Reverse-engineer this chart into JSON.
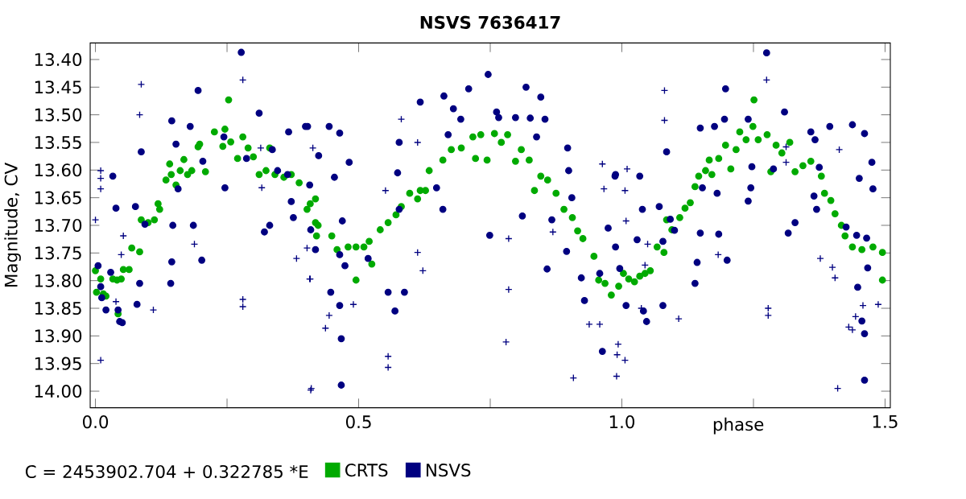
{
  "chart_data": {
    "type": "scatter",
    "title": "NSVS 7636417",
    "xlabel": "phase",
    "ylabel": "Magnitude, CV",
    "annotations": [
      "C = 2453902.704 + 0.322785 *E"
    ],
    "xlim": [
      -0.01,
      1.51
    ],
    "ylim": [
      14.03,
      13.37
    ],
    "xticks": [
      {
        "value": 0,
        "label": "0.0"
      },
      {
        "value": 0.25,
        "label": null
      },
      {
        "value": 0.5,
        "label": "0.5"
      },
      {
        "value": 0.75,
        "label": null
      },
      {
        "value": 1,
        "label": "1.0"
      },
      {
        "value": 1.25,
        "label": null
      },
      {
        "value": 1.5,
        "label": "1.5"
      }
    ],
    "yticks": [
      {
        "value": 13.4,
        "label": "13.40"
      },
      {
        "value": 13.45,
        "label": "13.45"
      },
      {
        "value": 13.5,
        "label": "13.50"
      },
      {
        "value": 13.55,
        "label": "13.55"
      },
      {
        "value": 13.6,
        "label": "13.60"
      },
      {
        "value": 13.65,
        "label": "13.65"
      },
      {
        "value": 13.7,
        "label": "13.70"
      },
      {
        "value": 13.75,
        "label": "13.75"
      },
      {
        "value": 13.8,
        "label": "13.80"
      },
      {
        "value": 13.85,
        "label": "13.85"
      },
      {
        "value": 13.9,
        "label": "13.90"
      },
      {
        "value": 13.95,
        "label": "13.95"
      },
      {
        "value": 14,
        "label": "14.00"
      }
    ],
    "legend": "bottom",
    "marker": "circle",
    "series": [
      {
        "name": "CRTS",
        "color": "#00aa00",
        "x": [
          0.0,
          0.002,
          0.01,
          0.015,
          0.02,
          0.033,
          0.041,
          0.043,
          0.049,
          0.053,
          0.064,
          0.069,
          0.084,
          0.087,
          0.1,
          0.112,
          0.119,
          0.122,
          0.134,
          0.141,
          0.144,
          0.153,
          0.161,
          0.168,
          0.175,
          0.183,
          0.195,
          0.198,
          0.209,
          0.226,
          0.242,
          0.246,
          0.253,
          0.257,
          0.27,
          0.28,
          0.29,
          0.3,
          0.311,
          0.324,
          0.331,
          0.341,
          0.358,
          0.372,
          0.387,
          0.402,
          0.418,
          0.423,
          0.408,
          0.418,
          0.42,
          0.449,
          0.459,
          0.48,
          0.495,
          0.51,
          0.525,
          0.52,
          0.495,
          0.541,
          0.556,
          0.571,
          0.581,
          0.597,
          0.612,
          0.617,
          0.627,
          0.634,
          0.66,
          0.676,
          0.695,
          0.717,
          0.722,
          0.732,
          0.744,
          0.758,
          0.771,
          0.783,
          0.798,
          0.809,
          0.824,
          0.834,
          0.846,
          0.859,
          0.875,
          0.89,
          0.906,
          0.916,
          0.926,
          0.947,
          0.956,
          0.968,
          0.98,
          0.994,
          1.003,
          1.013,
          1.024,
          1.034,
          1.044,
          1.054,
          1.067,
          1.08,
          1.085,
          1.095,
          1.11,
          1.12,
          1.13,
          1.139,
          1.146,
          1.159,
          1.171,
          1.166,
          1.184,
          1.197,
          1.207,
          1.217,
          1.224,
          1.236,
          1.249,
          1.251,
          1.259,
          1.276,
          1.283,
          1.293,
          1.304,
          1.319,
          1.329,
          1.344,
          1.359,
          1.379,
          1.385,
          1.397,
          1.405,
          1.417,
          1.424,
          1.438,
          1.456,
          1.477,
          1.495,
          1.495
        ],
        "values": [
          13.782,
          13.821,
          13.797,
          13.824,
          13.828,
          13.797,
          13.799,
          13.86,
          13.797,
          13.78,
          13.78,
          13.741,
          13.748,
          13.69,
          13.695,
          13.69,
          13.661,
          13.671,
          13.618,
          13.589,
          13.608,
          13.627,
          13.601,
          13.581,
          13.608,
          13.601,
          13.558,
          13.553,
          13.603,
          13.531,
          13.557,
          13.526,
          13.473,
          13.549,
          13.579,
          13.54,
          13.56,
          13.576,
          13.608,
          13.601,
          13.56,
          13.608,
          13.613,
          13.608,
          13.623,
          13.671,
          13.652,
          13.7,
          13.661,
          13.695,
          13.719,
          13.719,
          13.744,
          13.739,
          13.739,
          13.739,
          13.77,
          13.729,
          13.799,
          13.708,
          13.695,
          13.681,
          13.666,
          13.642,
          13.652,
          13.637,
          13.637,
          13.601,
          13.582,
          13.563,
          13.56,
          13.54,
          13.579,
          13.536,
          13.582,
          13.534,
          13.55,
          13.536,
          13.584,
          13.563,
          13.582,
          13.637,
          13.611,
          13.618,
          13.642,
          13.671,
          13.686,
          13.71,
          13.724,
          13.756,
          13.799,
          13.805,
          13.826,
          13.81,
          13.787,
          13.797,
          13.802,
          13.792,
          13.787,
          13.782,
          13.739,
          13.749,
          13.69,
          13.708,
          13.686,
          13.669,
          13.659,
          13.63,
          13.611,
          13.601,
          13.608,
          13.582,
          13.579,
          13.555,
          13.598,
          13.563,
          13.531,
          13.545,
          13.521,
          13.473,
          13.545,
          13.536,
          13.603,
          13.555,
          13.569,
          13.55,
          13.603,
          13.592,
          13.584,
          13.611,
          13.642,
          13.655,
          13.679,
          13.7,
          13.719,
          13.739,
          13.744,
          13.739,
          13.749,
          13.799
        ]
      },
      {
        "name": "NSVS",
        "color": "#000080",
        "x": [
          0.005,
          0.01,
          0.012,
          0.02,
          0.033,
          0.029,
          0.039,
          0.043,
          0.046,
          0.051,
          0.076,
          0.079,
          0.084,
          0.087,
          0.094,
          0.145,
          0.143,
          0.145,
          0.147,
          0.153,
          0.157,
          0.18,
          0.186,
          0.195,
          0.202,
          0.204,
          0.244,
          0.246,
          0.277,
          0.287,
          0.311,
          0.321,
          0.331,
          0.336,
          0.346,
          0.367,
          0.365,
          0.372,
          0.376,
          0.399,
          0.407,
          0.409,
          0.418,
          0.403,
          0.424,
          0.444,
          0.454,
          0.464,
          0.469,
          0.464,
          0.474,
          0.447,
          0.464,
          0.467,
          0.467,
          0.482,
          0.518,
          0.556,
          0.569,
          0.587,
          0.574,
          0.577,
          0.577,
          0.617,
          0.648,
          0.66,
          0.662,
          0.67,
          0.68,
          0.694,
          0.709,
          0.749,
          0.746,
          0.762,
          0.766,
          0.798,
          0.818,
          0.826,
          0.846,
          0.854,
          0.838,
          0.811,
          0.858,
          0.867,
          0.897,
          0.899,
          0.895,
          0.905,
          0.923,
          0.929,
          0.958,
          0.963,
          0.987,
          0.974,
          0.988,
          0.988,
          0.996,
          1.008,
          1.034,
          1.039,
          1.041,
          1.047,
          1.029,
          1.071,
          1.078,
          1.078,
          1.085,
          1.092,
          1.1,
          1.139,
          1.143,
          1.149,
          1.153,
          1.149,
          1.176,
          1.181,
          1.184,
          1.195,
          1.197,
          1.2,
          1.24,
          1.24,
          1.245,
          1.247,
          1.275,
          1.288,
          1.309,
          1.316,
          1.329,
          1.359,
          1.367,
          1.395,
          1.375,
          1.365,
          1.37,
          1.438,
          1.461,
          1.475,
          1.451,
          1.477,
          1.426,
          1.446,
          1.465,
          1.467,
          1.448,
          1.456,
          1.461,
          1.461
        ],
        "values": [
          13.773,
          13.811,
          13.831,
          13.853,
          13.611,
          13.785,
          13.669,
          13.853,
          13.874,
          13.876,
          13.666,
          13.843,
          13.805,
          13.567,
          13.698,
          13.511,
          13.805,
          13.766,
          13.7,
          13.553,
          13.634,
          13.521,
          13.7,
          13.456,
          13.763,
          13.584,
          13.54,
          13.632,
          13.387,
          13.579,
          13.497,
          13.712,
          13.7,
          13.563,
          13.601,
          13.531,
          13.608,
          13.657,
          13.686,
          13.521,
          13.627,
          13.708,
          13.744,
          13.521,
          13.574,
          13.521,
          13.613,
          13.533,
          13.692,
          13.753,
          13.773,
          13.821,
          13.845,
          13.905,
          13.989,
          13.586,
          13.76,
          13.821,
          13.855,
          13.821,
          13.605,
          13.671,
          13.55,
          13.477,
          13.632,
          13.671,
          13.466,
          13.536,
          13.489,
          13.508,
          13.453,
          13.718,
          13.427,
          13.495,
          13.505,
          13.505,
          13.45,
          13.506,
          13.468,
          13.508,
          13.54,
          13.683,
          13.779,
          13.69,
          13.56,
          13.601,
          13.747,
          13.65,
          13.795,
          13.836,
          13.787,
          13.928,
          13.611,
          13.705,
          13.608,
          13.739,
          13.778,
          13.845,
          13.611,
          13.671,
          13.855,
          13.874,
          13.726,
          13.666,
          13.729,
          13.845,
          13.567,
          13.689,
          13.709,
          13.805,
          13.767,
          13.524,
          13.632,
          13.714,
          13.521,
          13.642,
          13.716,
          13.508,
          13.453,
          13.763,
          13.508,
          13.656,
          13.632,
          13.594,
          13.388,
          13.598,
          13.495,
          13.714,
          13.695,
          13.531,
          13.545,
          13.521,
          13.595,
          13.647,
          13.671,
          13.518,
          13.534,
          13.586,
          13.615,
          13.634,
          13.703,
          13.718,
          13.723,
          13.777,
          13.812,
          13.873,
          13.896,
          13.98
        ]
      },
      {
        "color": "#000080",
        "marker": "cross",
        "x": [
          0.0,
          0.01,
          0.01,
          0.01,
          0.01,
          0.087,
          0.084,
          0.049,
          0.053,
          0.039,
          0.11,
          0.188,
          0.28,
          0.28,
          0.28,
          0.316,
          0.314,
          0.382,
          0.407,
          0.409,
          0.402,
          0.413,
          0.408,
          0.444,
          0.437,
          0.41,
          0.49,
          0.551,
          0.556,
          0.556,
          0.581,
          0.612,
          0.622,
          0.612,
          0.785,
          0.785,
          0.78,
          0.869,
          0.908,
          0.963,
          0.966,
          0.938,
          0.958,
          0.991,
          0.99,
          1.081,
          1.081,
          1.01,
          1.006,
          1.008,
          0.993,
          1.006,
          1.049,
          1.044,
          1.037,
          1.108,
          1.183,
          1.275,
          1.278,
          1.278,
          1.312,
          1.312,
          1.377,
          1.4,
          1.405,
          1.413,
          1.431,
          1.438,
          1.444,
          1.458,
          1.487,
          1.41
        ],
        "values": [
          13.69,
          13.601,
          13.615,
          13.634,
          13.944,
          13.445,
          13.5,
          13.753,
          13.719,
          13.838,
          13.853,
          13.734,
          13.437,
          13.834,
          13.847,
          13.632,
          13.56,
          13.76,
          13.797,
          13.998,
          13.741,
          13.56,
          13.797,
          13.863,
          13.886,
          13.995,
          13.843,
          13.637,
          13.937,
          13.957,
          13.508,
          13.749,
          13.782,
          13.55,
          13.724,
          13.816,
          13.911,
          13.712,
          13.976,
          13.589,
          13.634,
          13.879,
          13.879,
          13.934,
          13.973,
          13.456,
          13.51,
          13.598,
          13.637,
          13.692,
          13.915,
          13.944,
          13.734,
          13.772,
          13.85,
          13.869,
          13.753,
          13.437,
          13.85,
          13.863,
          13.586,
          13.558,
          13.76,
          13.776,
          13.795,
          13.563,
          13.884,
          13.889,
          13.865,
          13.845,
          13.843,
          13.995
        ]
      }
    ]
  }
}
